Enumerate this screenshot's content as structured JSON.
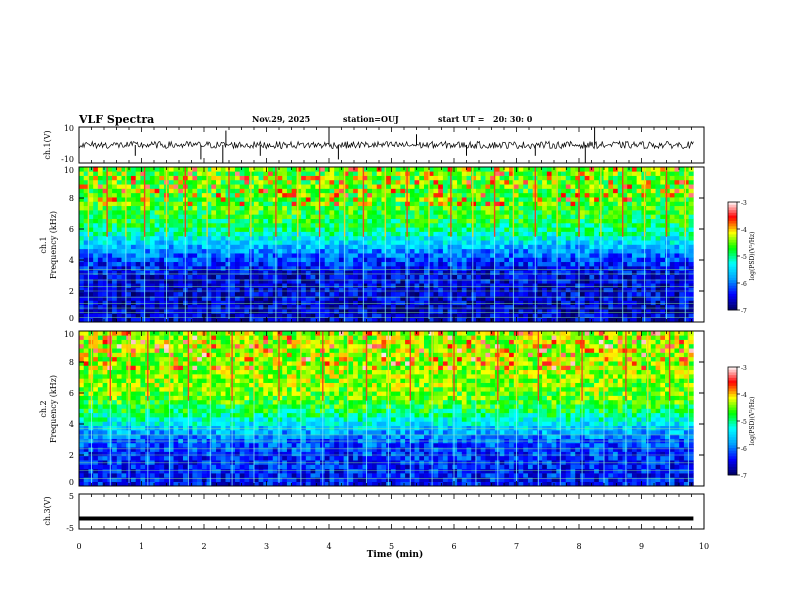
{
  "header": {
    "title": "VLF Spectra",
    "date": "Nov.29, 2025",
    "station": "station=OUJ",
    "start_label": "start  UT  =",
    "start_time": "20: 30: 0"
  },
  "chart_data": [
    {
      "type": "line",
      "name": "ch1-waveform",
      "ylabel": "ch.1(V)",
      "ylim": [
        -10,
        10
      ],
      "y_ticks": [
        "10",
        "-10"
      ],
      "baseline": 0,
      "amplitude_typical": 2,
      "spikes": [
        {
          "t": 0.9,
          "v": -6
        },
        {
          "t": 1.95,
          "v": -8
        },
        {
          "t": 2.3,
          "v": -10
        },
        {
          "t": 2.35,
          "v": 8
        },
        {
          "t": 2.9,
          "v": -6
        },
        {
          "t": 4.0,
          "v": 10
        },
        {
          "t": 4.15,
          "v": -8
        },
        {
          "t": 5.4,
          "v": 6
        },
        {
          "t": 6.2,
          "v": -6
        },
        {
          "t": 7.3,
          "v": -6
        },
        {
          "t": 8.1,
          "v": -10
        },
        {
          "t": 8.25,
          "v": 10
        }
      ]
    },
    {
      "type": "heatmap",
      "name": "ch1-spectrogram",
      "ylabel_line1": "ch.1",
      "ylabel_line2": "Frequency (kHz)",
      "ylim": [
        0,
        10
      ],
      "y_ticks": [
        "0",
        "2",
        "4",
        "6",
        "8",
        "10"
      ],
      "xlim": [
        0,
        10
      ],
      "data_end_min": 9.83,
      "colorbar": {
        "label": "log(PSD)(V²/Hz)",
        "range": [
          -7,
          -3
        ],
        "ticks": [
          "-3",
          "-4",
          "-5",
          "-6",
          "-7"
        ],
        "colors": [
          "#000060",
          "#0000ff",
          "#00a0ff",
          "#00ffff",
          "#00ff00",
          "#ffff00",
          "#ff0000",
          "#ffffff"
        ]
      },
      "background_log_psd": -6.6,
      "upper_band_log_psd": -4.6,
      "transition_khz": 5,
      "tone_lines_khz": [
        0.3,
        0.6,
        0.9,
        1.2,
        1.6,
        2.0,
        2.3,
        2.7,
        3.1,
        3.4
      ],
      "sferics_min": [
        0.15,
        0.45,
        0.75,
        1.05,
        1.4,
        1.7,
        2.05,
        2.4,
        2.75,
        3.15,
        3.5,
        3.85,
        4.25,
        4.55,
        4.9,
        5.25,
        5.6,
        5.95,
        6.3,
        6.65,
        6.95,
        7.3,
        7.65,
        8.0,
        8.35,
        8.7,
        9.05,
        9.4,
        9.7
      ]
    },
    {
      "type": "heatmap",
      "name": "ch2-spectrogram",
      "ylabel_line1": "ch.2",
      "ylabel_line2": "Frequency (kHz)",
      "ylim": [
        0,
        10
      ],
      "y_ticks": [
        "0",
        "2",
        "4",
        "6",
        "8",
        "10"
      ],
      "xlim": [
        0,
        10
      ],
      "data_end_min": 9.83,
      "colorbar": {
        "label": "log(PSD)(V²/Hz)",
        "range": [
          -7,
          -3
        ],
        "ticks": [
          "-3",
          "-4",
          "-5",
          "-6",
          "-7"
        ]
      },
      "background_log_psd": -6.4,
      "upper_band_log_psd": -4.4,
      "transition_khz": 4,
      "tone_lines_khz": [
        0.5,
        1.0,
        1.5,
        2.0,
        2.4,
        2.9,
        3.3,
        3.7
      ],
      "sferics_min": [
        0.2,
        0.5,
        0.8,
        1.1,
        1.45,
        1.75,
        2.1,
        2.45,
        2.8,
        3.2,
        3.55,
        3.9,
        4.3,
        4.6,
        4.95,
        5.3,
        5.65,
        6.0,
        6.35,
        6.7,
        7.0,
        7.35,
        7.7,
        8.05,
        8.4,
        8.75,
        9.1,
        9.45,
        9.75
      ]
    },
    {
      "type": "line",
      "name": "ch3-waveform",
      "ylabel": "ch.3(V)",
      "ylim": [
        -5,
        5
      ],
      "y_ticks": [
        "5",
        "-5"
      ],
      "baseline": -2,
      "xlabel": "Time (min)",
      "xlim": [
        0,
        10
      ],
      "x_ticks": [
        "0",
        "1",
        "2",
        "3",
        "4",
        "5",
        "6",
        "7",
        "8",
        "9",
        "10"
      ]
    }
  ]
}
